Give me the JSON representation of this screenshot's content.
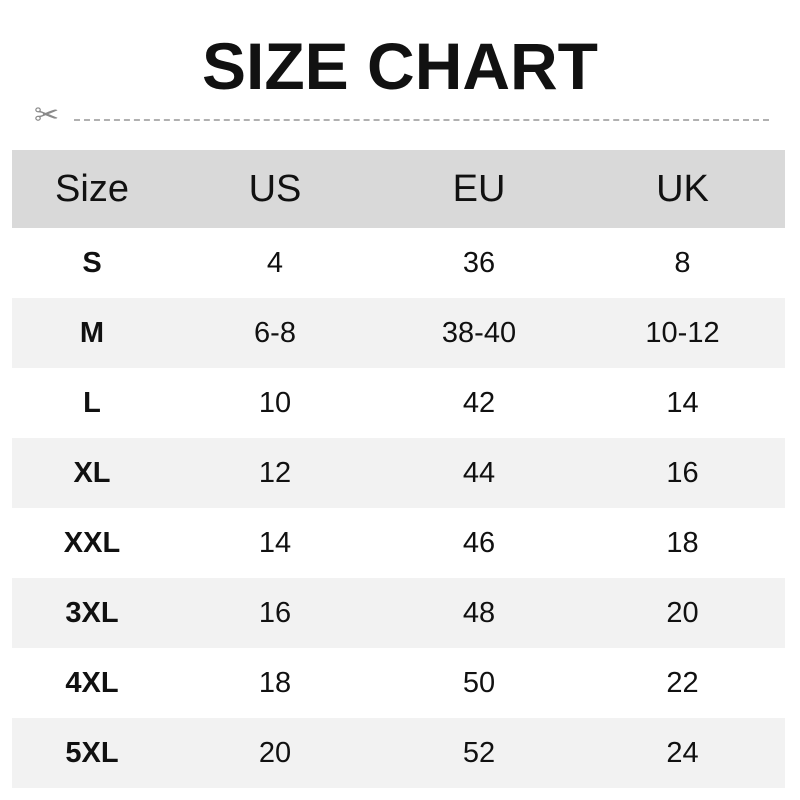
{
  "title": "SIZE CHART",
  "icons": {
    "cut": "scissors-icon"
  },
  "colors": {
    "header_bg": "#d9d9d9",
    "alt_row_bg": "#f2f2f2",
    "text": "#111111"
  },
  "table": {
    "headers": [
      "Size",
      "US",
      "EU",
      "UK"
    ],
    "rows": [
      [
        "S",
        "4",
        "36",
        "8"
      ],
      [
        "M",
        "6-8",
        "38-40",
        "10-12"
      ],
      [
        "L",
        "10",
        "42",
        "14"
      ],
      [
        "XL",
        "12",
        "44",
        "16"
      ],
      [
        "XXL",
        "14",
        "46",
        "18"
      ],
      [
        "3XL",
        "16",
        "48",
        "20"
      ],
      [
        "4XL",
        "18",
        "50",
        "22"
      ],
      [
        "5XL",
        "20",
        "52",
        "24"
      ]
    ]
  }
}
